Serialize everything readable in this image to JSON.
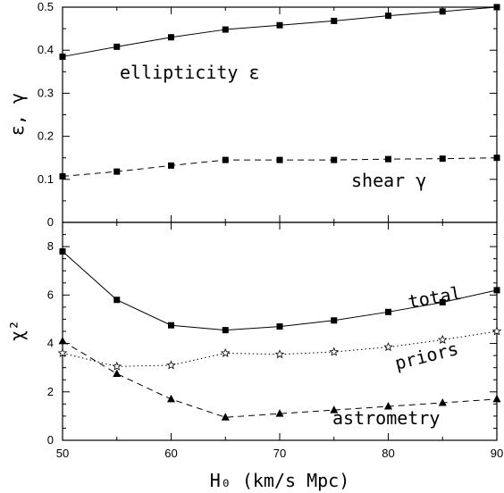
{
  "chart_data": [
    {
      "type": "line",
      "ylabel": "ε, γ",
      "ylim": [
        0,
        0.5
      ],
      "yticks": [
        "0",
        "0.1",
        "0.2",
        "0.3",
        "0.4",
        "0.5"
      ],
      "x": [
        50,
        55,
        60,
        65,
        70,
        75,
        80,
        85,
        90
      ],
      "series": [
        {
          "name": "ellipticity ε",
          "marker": "square",
          "line": "solid",
          "values": [
            0.385,
            0.408,
            0.43,
            0.448,
            0.458,
            0.468,
            0.48,
            0.49,
            0.5
          ]
        },
        {
          "name": "shear γ",
          "marker": "square",
          "line": "dashed",
          "values": [
            0.107,
            0.118,
            0.132,
            0.145,
            0.145,
            0.145,
            0.147,
            0.148,
            0.15
          ]
        }
      ],
      "annotations": [
        "ellipticity ε",
        "shear γ"
      ]
    },
    {
      "type": "line",
      "xlabel": "H₀ (km/s Mpc)",
      "ylabel": "χ²",
      "xlim": [
        50,
        90
      ],
      "ylim": [
        0,
        9
      ],
      "xticks": [
        "50",
        "60",
        "70",
        "80",
        "90"
      ],
      "yticks": [
        "0",
        "2",
        "4",
        "6",
        "8"
      ],
      "x": [
        50,
        55,
        60,
        65,
        70,
        75,
        80,
        85,
        90
      ],
      "series": [
        {
          "name": "total",
          "marker": "square",
          "line": "solid",
          "values": [
            7.8,
            5.8,
            4.75,
            4.55,
            4.7,
            4.95,
            5.3,
            5.7,
            6.2
          ]
        },
        {
          "name": "priors",
          "marker": "open-star",
          "line": "dotted",
          "values": [
            3.6,
            3.05,
            3.1,
            3.6,
            3.55,
            3.65,
            3.85,
            4.15,
            4.5
          ]
        },
        {
          "name": "astrometry",
          "marker": "triangle",
          "line": "dashed",
          "values": [
            4.1,
            2.75,
            1.7,
            0.95,
            1.1,
            1.25,
            1.4,
            1.55,
            1.7
          ]
        }
      ],
      "annotations": [
        "total",
        "priors",
        "astrometry"
      ]
    }
  ]
}
